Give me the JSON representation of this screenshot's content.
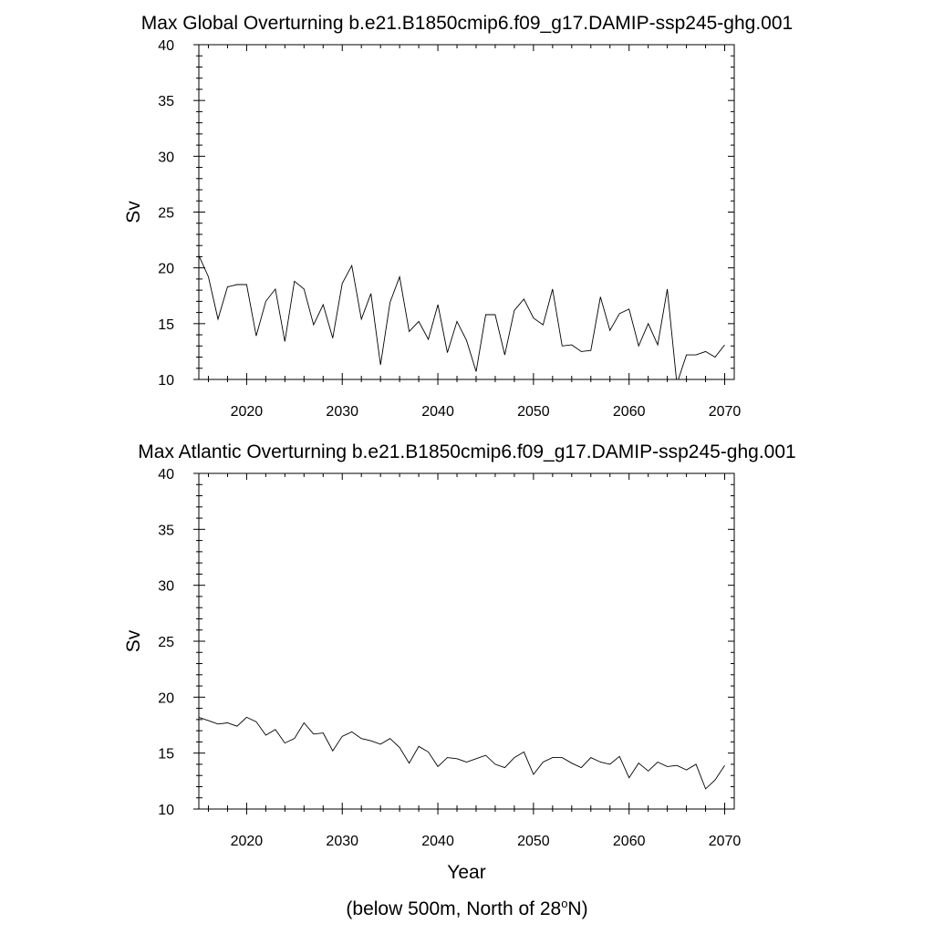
{
  "footnote": {
    "prefix": "(below 500m, North of 28",
    "superscript": "o",
    "suffix": "N)"
  },
  "line_color": "#000000",
  "chart_data": [
    {
      "type": "line",
      "title": "Max Global Overturning b.e21.B1850cmip6.f09_g17.DAMIP-ssp245-ghg.001",
      "xlabel": "",
      "ylabel": "Sv",
      "xlim": [
        2015,
        2071
      ],
      "ylim": [
        10,
        40
      ],
      "xticks": [
        "2020",
        "2030",
        "2040",
        "2050",
        "2060",
        "2070"
      ],
      "yticks": [
        "10",
        "15",
        "20",
        "25",
        "30",
        "35",
        "40"
      ],
      "grid": false,
      "x": [
        2015,
        2016,
        2017,
        2018,
        2019,
        2020,
        2021,
        2022,
        2023,
        2024,
        2025,
        2026,
        2027,
        2028,
        2029,
        2030,
        2031,
        2032,
        2033,
        2034,
        2035,
        2036,
        2037,
        2038,
        2039,
        2040,
        2041,
        2042,
        2043,
        2044,
        2045,
        2046,
        2047,
        2048,
        2049,
        2050,
        2051,
        2052,
        2053,
        2054,
        2055,
        2056,
        2057,
        2058,
        2059,
        2060,
        2061,
        2062,
        2063,
        2064,
        2065,
        2066,
        2067,
        2068,
        2069,
        2070
      ],
      "values": [
        21.1,
        19.2,
        15.4,
        18.3,
        18.5,
        18.5,
        13.9,
        17.0,
        18.1,
        13.4,
        18.8,
        18.1,
        14.9,
        16.7,
        13.7,
        18.6,
        20.2,
        15.4,
        17.7,
        11.3,
        16.9,
        19.2,
        14.3,
        15.2,
        13.6,
        16.7,
        12.4,
        15.2,
        13.5,
        10.7,
        15.8,
        15.8,
        12.2,
        16.2,
        17.2,
        15.5,
        14.9,
        18.1,
        13.0,
        13.1,
        12.5,
        12.6,
        17.4,
        14.4,
        15.9,
        16.3,
        13.0,
        15.0,
        13.1,
        18.1,
        9.6,
        12.2,
        12.2,
        12.5,
        12.0,
        13.1
      ]
    },
    {
      "type": "line",
      "title": "Max Atlantic Overturning b.e21.B1850cmip6.f09_g17.DAMIP-ssp245-ghg.001",
      "xlabel": "Year",
      "ylabel": "Sv",
      "xlim": [
        2015,
        2071
      ],
      "ylim": [
        10,
        40
      ],
      "xticks": [
        "2020",
        "2030",
        "2040",
        "2050",
        "2060",
        "2070"
      ],
      "yticks": [
        "10",
        "15",
        "20",
        "25",
        "30",
        "35",
        "40"
      ],
      "grid": false,
      "x": [
        2015,
        2016,
        2017,
        2018,
        2019,
        2020,
        2021,
        2022,
        2023,
        2024,
        2025,
        2026,
        2027,
        2028,
        2029,
        2030,
        2031,
        2032,
        2033,
        2034,
        2035,
        2036,
        2037,
        2038,
        2039,
        2040,
        2041,
        2042,
        2043,
        2044,
        2045,
        2046,
        2047,
        2048,
        2049,
        2050,
        2051,
        2052,
        2053,
        2054,
        2055,
        2056,
        2057,
        2058,
        2059,
        2060,
        2061,
        2062,
        2063,
        2064,
        2065,
        2066,
        2067,
        2068,
        2069,
        2070
      ],
      "values": [
        18.2,
        17.9,
        17.6,
        17.7,
        17.4,
        18.2,
        17.8,
        16.6,
        17.1,
        15.9,
        16.3,
        17.7,
        16.7,
        16.8,
        15.2,
        16.5,
        16.9,
        16.3,
        16.1,
        15.8,
        16.3,
        15.5,
        14.1,
        15.6,
        15.1,
        13.8,
        14.6,
        14.5,
        14.2,
        14.5,
        14.8,
        14.0,
        13.7,
        14.6,
        15.1,
        13.1,
        14.2,
        14.6,
        14.6,
        14.1,
        13.7,
        14.6,
        14.2,
        14.0,
        14.7,
        12.8,
        14.1,
        13.4,
        14.2,
        13.8,
        13.9,
        13.5,
        14.0,
        11.8,
        12.6,
        13.9
      ]
    }
  ]
}
